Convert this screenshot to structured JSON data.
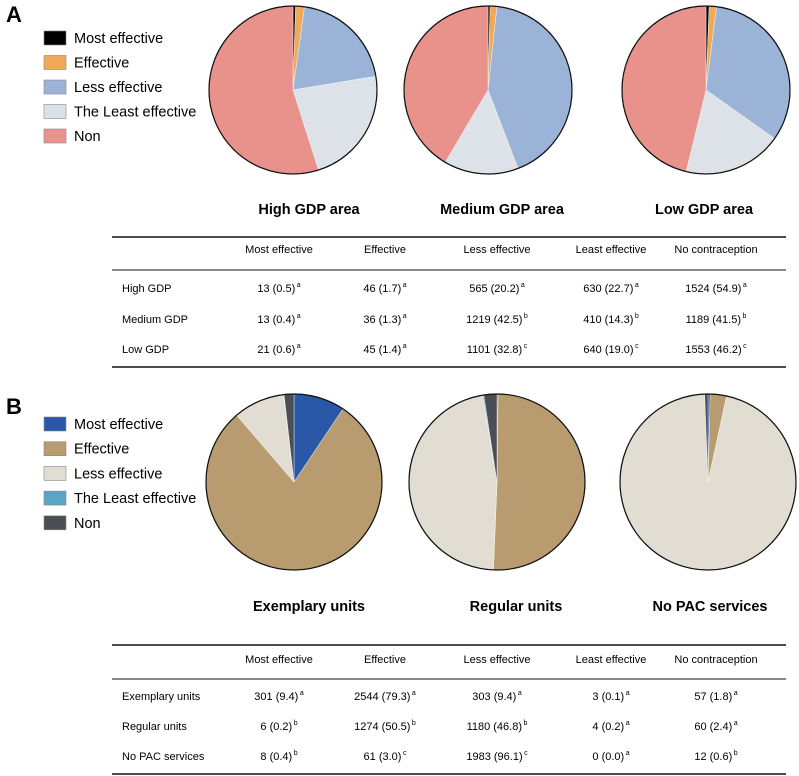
{
  "chart_data": [
    {
      "panel": "A",
      "type": "pie",
      "legend": {
        "placement": "top-left",
        "entries": [
          {
            "label": "Most effective",
            "color": "#000000"
          },
          {
            "label": "Effective",
            "color": "#f0a859"
          },
          {
            "label": "Less effective",
            "color": "#9bb3d6"
          },
          {
            "label": "The Least effective",
            "color": "#dde2e9"
          },
          {
            "label": "Non",
            "color": "#e8928b"
          }
        ]
      },
      "pies": [
        {
          "title": "High GDP area",
          "values": [
            0.5,
            1.7,
            20.2,
            22.7,
            54.9
          ]
        },
        {
          "title": "Medium  GDP area",
          "values": [
            0.4,
            1.3,
            42.5,
            14.3,
            41.5
          ]
        },
        {
          "title": "Low GDP area",
          "values": [
            0.6,
            1.4,
            32.8,
            19.0,
            46.2
          ]
        }
      ],
      "table": {
        "headers": [
          "Most effective",
          "Effective",
          "Less effective",
          "Least effective",
          "No contraception"
        ],
        "rows": [
          {
            "label": "High GDP",
            "cells": [
              {
                "v": "13 (0.5)",
                "s": "a"
              },
              {
                "v": "46 (1.7)",
                "s": "a"
              },
              {
                "v": "565 (20.2)",
                "s": "a"
              },
              {
                "v": "630 (22.7)",
                "s": "a"
              },
              {
                "v": "1524 (54.9)",
                "s": "a"
              }
            ]
          },
          {
            "label": "Medium GDP",
            "cells": [
              {
                "v": "13 (0.4)",
                "s": "a"
              },
              {
                "v": "36 (1.3)",
                "s": "a"
              },
              {
                "v": "1219 (42.5)",
                "s": "b"
              },
              {
                "v": "410 (14.3)",
                "s": "b"
              },
              {
                "v": "1189 (41.5)",
                "s": "b"
              }
            ]
          },
          {
            "label": "Low GDP",
            "cells": [
              {
                "v": "21 (0.6)",
                "s": "a"
              },
              {
                "v": "45 (1.4)",
                "s": "a"
              },
              {
                "v": "1101 (32.8)",
                "s": "c"
              },
              {
                "v": "640 (19.0)",
                "s": "c"
              },
              {
                "v": "1553 (46.2)",
                "s": "c"
              }
            ]
          }
        ]
      }
    },
    {
      "panel": "B",
      "type": "pie",
      "legend": {
        "placement": "top-left",
        "entries": [
          {
            "label": "Most effective",
            "color": "#2b57a8"
          },
          {
            "label": "Effective",
            "color": "#b89c70"
          },
          {
            "label": "Less effective",
            "color": "#e2ddd2"
          },
          {
            "label": "The Least effective",
            "color": "#5ba4c8"
          },
          {
            "label": "Non",
            "color": "#4a4f55"
          }
        ]
      },
      "pies": [
        {
          "title": "Exemplary units",
          "values": [
            9.4,
            79.3,
            9.4,
            0.1,
            1.8
          ]
        },
        {
          "title": "Regular units",
          "values": [
            0.2,
            50.5,
            46.8,
            0.2,
            2.4
          ]
        },
        {
          "title": "No PAC services",
          "values": [
            0.4,
            3.0,
            96.1,
            0.0,
            0.6
          ]
        }
      ],
      "table": {
        "headers": [
          "Most effective",
          "Effective",
          "Less effective",
          "Least effective",
          "No contraception"
        ],
        "rows": [
          {
            "label": "Exemplary units",
            "cells": [
              {
                "v": "301 (9.4)",
                "s": "a"
              },
              {
                "v": "2544 (79.3)",
                "s": "a"
              },
              {
                "v": "303 (9.4)",
                "s": "a"
              },
              {
                "v": "3 (0.1)",
                "s": "a"
              },
              {
                "v": "57 (1.8)",
                "s": "a"
              }
            ]
          },
          {
            "label": "Regular units",
            "cells": [
              {
                "v": "6 (0.2)",
                "s": "b"
              },
              {
                "v": "1274 (50.5)",
                "s": "b"
              },
              {
                "v": "1180 (46.8)",
                "s": "b"
              },
              {
                "v": "4 (0.2)",
                "s": "a"
              },
              {
                "v": "60 (2.4)",
                "s": "a"
              }
            ]
          },
          {
            "label": "No PAC services",
            "cells": [
              {
                "v": "8 (0.4)",
                "s": "b"
              },
              {
                "v": "61 (3.0)",
                "s": "c"
              },
              {
                "v": "1983 (96.1)",
                "s": "c"
              },
              {
                "v": "0 (0.0)",
                "s": "a"
              },
              {
                "v": "12 (0.6)",
                "s": "b"
              }
            ]
          }
        ]
      }
    }
  ]
}
